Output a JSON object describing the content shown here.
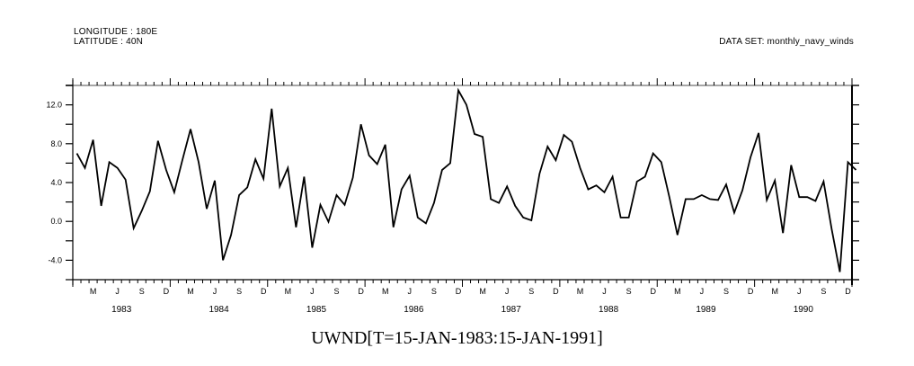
{
  "header": {
    "longitude": "LONGITUDE : 180E",
    "latitude": "LATITUDE : 40N",
    "dataset": "DATA SET: monthly_navy_winds"
  },
  "plot_title": "UWND[T=15-JAN-1983:15-JAN-1991]",
  "colors": {
    "line": "#000000",
    "axis": "#000000",
    "background": "#ffffff"
  },
  "chart_data": {
    "type": "line",
    "title": "UWND[T=15-JAN-1983:15-JAN-1991]",
    "subtitle": "LONGITUDE : 180E / LATITUDE : 40N / DATA SET: monthly_navy_winds",
    "xlabel": "",
    "ylabel": "",
    "ylim": [
      -6,
      14
    ],
    "yticks": [
      -4.0,
      0.0,
      4.0,
      8.0,
      12.0
    ],
    "ytick_labels": [
      "-4.0",
      "0.0",
      "4.0",
      "8.0",
      "12.0"
    ],
    "x_month_labels": [
      "M",
      "J",
      "S",
      "D"
    ],
    "x_year_labels": [
      "1983",
      "1984",
      "1985",
      "1986",
      "1987",
      "1988",
      "1989",
      "1990"
    ],
    "x_start": "15-JAN-1983",
    "x_end": "15-JAN-1991",
    "grid": false,
    "legend": "none",
    "series": [
      {
        "name": "UWND",
        "values": [
          7.0,
          5.5,
          8.4,
          1.6,
          6.1,
          5.5,
          4.3,
          -0.7,
          1.1,
          3.1,
          8.3,
          5.3,
          3.0,
          6.3,
          9.5,
          6.1,
          1.3,
          4.2,
          -4.0,
          -1.4,
          2.7,
          3.5,
          6.4,
          4.4,
          11.6,
          3.6,
          5.5,
          -0.6,
          4.6,
          -2.7,
          1.7,
          -0.05,
          2.7,
          1.7,
          4.5,
          10.0,
          6.8,
          5.9,
          7.9,
          -0.6,
          3.3,
          4.7,
          0.4,
          -0.2,
          1.9,
          5.3,
          6.0,
          13.5,
          12.0,
          9.0,
          8.7,
          2.3,
          1.9,
          3.6,
          1.6,
          0.4,
          0.1,
          4.9,
          7.7,
          6.3,
          8.9,
          8.2,
          5.5,
          3.3,
          3.7,
          3.0,
          4.6,
          0.4,
          0.4,
          4.1,
          4.6,
          7.0,
          6.1,
          2.5,
          -1.4,
          2.3,
          2.3,
          2.7,
          2.3,
          2.2,
          3.8,
          0.9,
          3.2,
          6.6,
          9.1,
          2.2,
          4.2,
          -1.2,
          5.8,
          2.5,
          2.5,
          2.1,
          4.1,
          -0.8,
          -5.2,
          6.1,
          5.3
        ]
      }
    ]
  }
}
